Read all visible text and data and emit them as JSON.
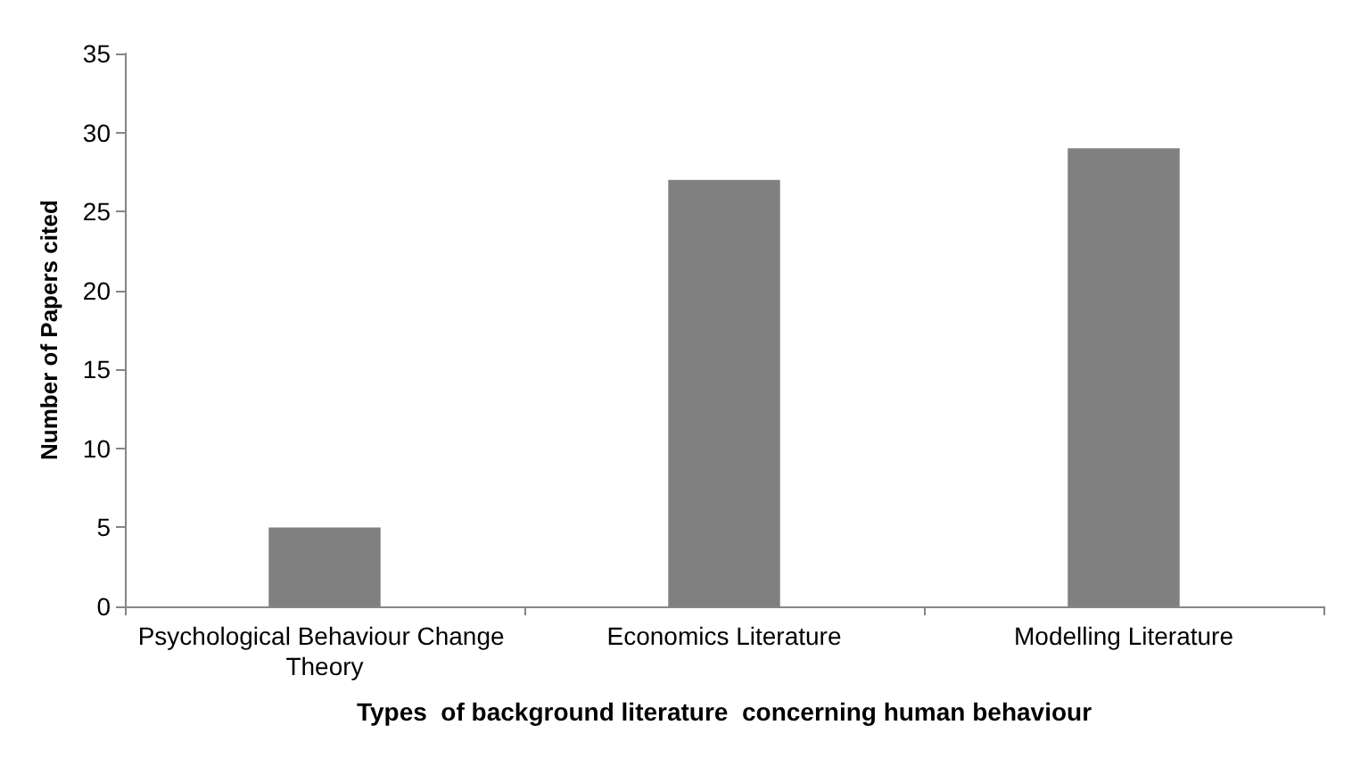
{
  "chart_data": {
    "type": "bar",
    "xlabel": "Types  of background literature  concerning human behaviour",
    "ylabel": "Number of Papers cited",
    "categories": [
      "Psychological Behaviour Change Theory",
      "Economics Literature",
      "Modelling Literature"
    ],
    "values": [
      5,
      27,
      29
    ],
    "color": "#808080",
    "ylim": [
      0,
      35
    ],
    "yticks": [
      0,
      5,
      10,
      15,
      20,
      25,
      30,
      35
    ],
    "grid": false
  }
}
